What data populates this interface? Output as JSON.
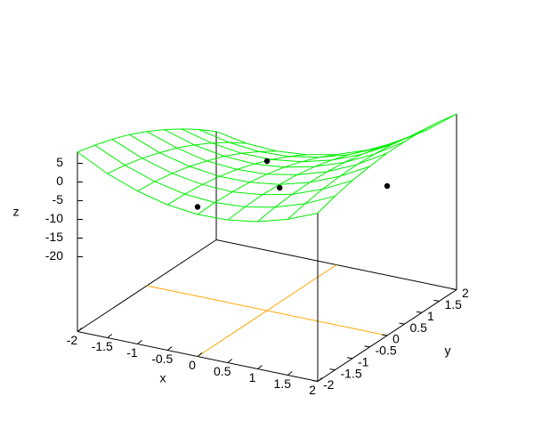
{
  "chart_data": {
    "type": "surface3d",
    "x": [
      -2,
      -1.5,
      -1,
      -0.5,
      0,
      0.5,
      1,
      1.5,
      2
    ],
    "y": [
      -2,
      -1.5,
      -1,
      -0.5,
      0,
      0.5,
      1,
      1.5,
      2
    ],
    "z": [
      [
        8.0,
        6.8,
        5.3,
        3.5,
        1.25,
        -1.3,
        -4.2,
        -7.4,
        -11.0
      ],
      [
        3.9,
        3.1,
        1.9,
        0.3,
        -1.5,
        -3.75,
        -6.3,
        -9.2,
        -12.5
      ],
      [
        0.9,
        0.4,
        -0.5,
        -1.7,
        -3.3,
        -5.1,
        -7.4,
        -10.0,
        -12.9
      ],
      [
        -1.1,
        -1.3,
        -1.8,
        -2.7,
        -3.9,
        -5.5,
        -7.4,
        -9.6,
        -12.2
      ],
      [
        -2.0,
        -1.9,
        -2.1,
        -2.6,
        -3.5,
        -4.7,
        -6.3,
        -8.2,
        -10.5
      ],
      [
        -1.8,
        -1.4,
        -1.2,
        -1.5,
        -2.0,
        -2.9,
        -4.2,
        -5.8,
        -7.7
      ],
      [
        -0.6,
        0.2,
        0.6,
        0.7,
        0.5,
        -0.1,
        -1.0,
        -2.3,
        -3.9
      ],
      [
        1.7,
        2.8,
        3.6,
        4.0,
        4.1,
        3.8,
        3.3,
        2.3,
        1.0
      ],
      [
        5.0,
        6.5,
        7.6,
        8.3,
        8.8,
        8.8,
        8.6,
        8.0,
        7.0
      ]
    ],
    "color": "#00ee00",
    "points": {
      "x": [
        0,
        0,
        0.5,
        2
      ],
      "y": [
        -2,
        0,
        -0.5,
        0
      ],
      "z": [
        0,
        0,
        -2.4,
        0
      ],
      "color": "#000000"
    },
    "xlim": [
      -2,
      2
    ],
    "ylim": [
      -2,
      2
    ],
    "zlim": [
      -20,
      10
    ],
    "xticks": [
      -2,
      -1.5,
      -1,
      -0.5,
      0,
      0.5,
      1,
      1.5,
      2
    ],
    "yticks": [
      -2,
      -1.5,
      -1,
      -0.5,
      0,
      0.5,
      1,
      1.5,
      2
    ],
    "zticks": [
      5,
      0,
      -5,
      -10,
      -15,
      -20
    ],
    "xlabel": "x",
    "ylabel": "y",
    "zlabel": "z",
    "zeroaxis_color": "#ffa500"
  }
}
